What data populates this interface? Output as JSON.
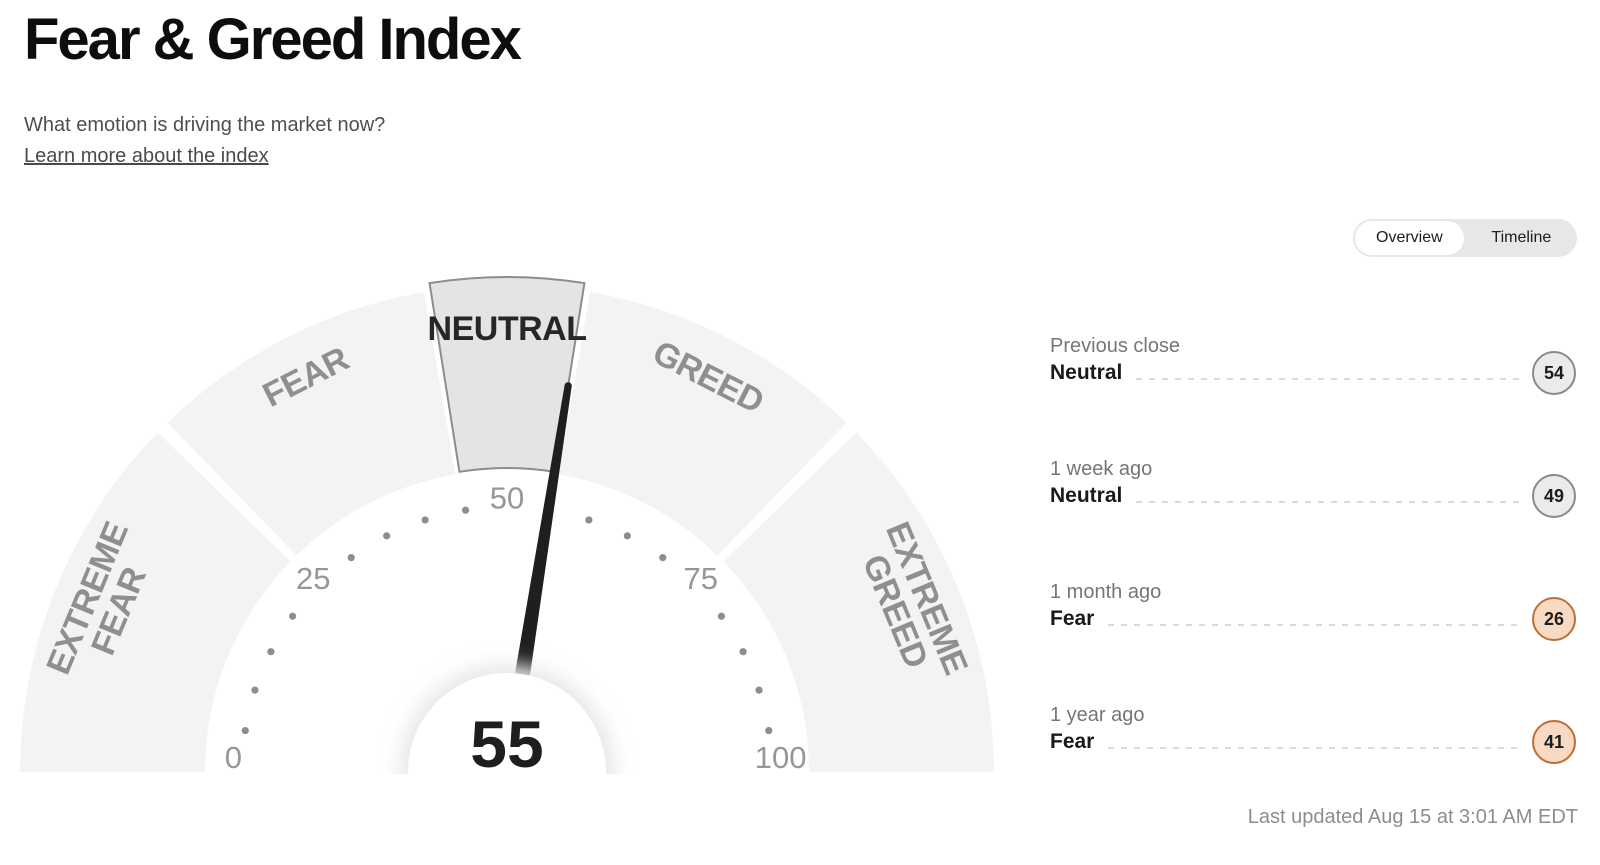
{
  "header": {
    "title": "Fear & Greed Index",
    "subtitle": "What emotion is driving the market now?",
    "learn_more": "Learn more about the index"
  },
  "view_toggle": {
    "options": [
      {
        "label": "Overview",
        "selected": true
      },
      {
        "label": "Timeline",
        "selected": false
      }
    ]
  },
  "chart_data": {
    "type": "gauge",
    "title": "Fear & Greed Index dial",
    "value": 55,
    "value_label": "55",
    "min": 0,
    "max": 100,
    "axis_ticks": [
      0,
      25,
      50,
      75,
      100
    ],
    "minor_tick_step": 5,
    "segments": [
      {
        "label": "EXTREME FEAR",
        "start": 0,
        "end": 25,
        "two_line": true,
        "active": false
      },
      {
        "label": "FEAR",
        "start": 25,
        "end": 45,
        "two_line": false,
        "active": false
      },
      {
        "label": "NEUTRAL",
        "start": 45,
        "end": 55,
        "two_line": false,
        "active": true
      },
      {
        "label": "GREED",
        "start": 55,
        "end": 75,
        "two_line": false,
        "active": false
      },
      {
        "label": "EXTREME GREED",
        "start": 75,
        "end": 100,
        "two_line": true,
        "active": false
      }
    ],
    "colors": {
      "segment_fill": "#f3f3f3",
      "active_segment_fill": "#e4e4e4",
      "active_segment_stroke": "#8d8d8d",
      "segment_label": "#8f8f8f",
      "active_label": "#262626",
      "tick_dot": "#8d8d8d",
      "tick_number": "#979797",
      "needle": "#1f1f1f",
      "center_text": "#1e1e1e",
      "halo": "#e8e8e8",
      "center_fill": "#ffffff"
    }
  },
  "history": [
    {
      "period": "Previous close",
      "label": "Neutral",
      "value": 54,
      "tone": "neutral"
    },
    {
      "period": "1 week ago",
      "label": "Neutral",
      "value": 49,
      "tone": "neutral"
    },
    {
      "period": "1 month ago",
      "label": "Fear",
      "value": 26,
      "tone": "fear"
    },
    {
      "period": "1 year ago",
      "label": "Fear",
      "value": 41,
      "tone": "fear"
    }
  ],
  "footer": {
    "last_updated": "Last updated Aug 15 at 3:01 AM EDT"
  }
}
